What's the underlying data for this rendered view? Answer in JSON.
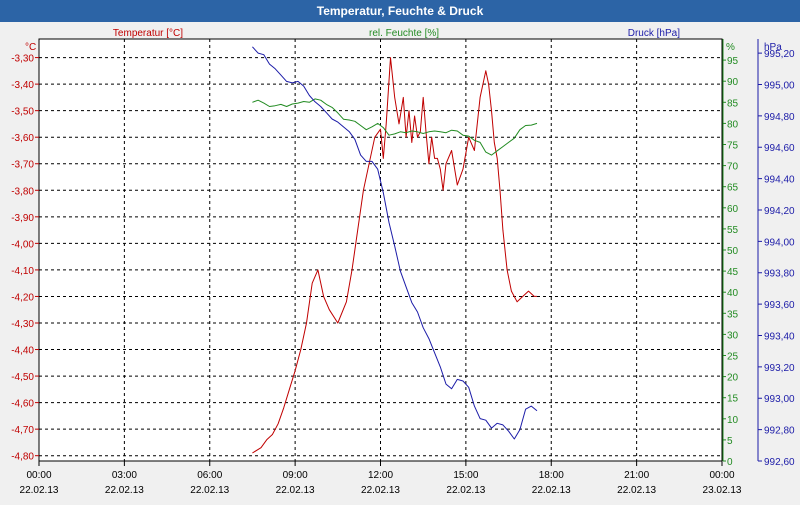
{
  "window": {
    "title": "Temperatur, Feuchte & Druck"
  },
  "colors": {
    "temperature": "#c00000",
    "humidity": "#228b22",
    "pressure": "#1c1ca8",
    "grid": "#000000",
    "text": "#000000"
  },
  "chart_data": {
    "type": "line",
    "title": "Temperatur, Feuchte & Druck",
    "x": {
      "ticks": [
        {
          "time": "00:00",
          "date": "22.02.13",
          "h": 0
        },
        {
          "time": "03:00",
          "date": "22.02.13",
          "h": 3
        },
        {
          "time": "06:00",
          "date": "22.02.13",
          "h": 6
        },
        {
          "time": "09:00",
          "date": "22.02.13",
          "h": 9
        },
        {
          "time": "12:00",
          "date": "22.02.13",
          "h": 12
        },
        {
          "time": "15:00",
          "date": "22.02.13",
          "h": 15
        },
        {
          "time": "18:00",
          "date": "22.02.13",
          "h": 18
        },
        {
          "time": "21:00",
          "date": "22.02.13",
          "h": 21
        },
        {
          "time": "00:00",
          "date": "23.02.13",
          "h": 24
        }
      ],
      "range": [
        0,
        24
      ]
    },
    "axes": {
      "temperature": {
        "title": "Temperatur [°C]",
        "unit": "°C",
        "range": [
          -4.82,
          -3.23
        ],
        "ticks": [
          "-3,30",
          "-3,40",
          "-3,50",
          "-3,60",
          "-3,70",
          "-3,80",
          "-3,90",
          "-4,00",
          "-4,10",
          "-4,20",
          "-4,30",
          "-4,40",
          "-4,50",
          "-4,60",
          "-4,70",
          "-4,80"
        ],
        "tick_values": [
          -3.3,
          -3.4,
          -3.5,
          -3.6,
          -3.7,
          -3.8,
          -3.9,
          -4.0,
          -4.1,
          -4.2,
          -4.3,
          -4.4,
          -4.5,
          -4.6,
          -4.7,
          -4.8
        ]
      },
      "humidity": {
        "title": "rel. Feuchte [%]",
        "unit": "%",
        "range": [
          0,
          100
        ],
        "ticks": [
          "95",
          "90",
          "85",
          "80",
          "75",
          "70",
          "65",
          "60",
          "55",
          "50",
          "45",
          "40",
          "35",
          "30",
          "25",
          "20",
          "15",
          "10",
          "5",
          "0"
        ],
        "tick_values": [
          95,
          90,
          85,
          80,
          75,
          70,
          65,
          60,
          55,
          50,
          45,
          40,
          35,
          30,
          25,
          20,
          15,
          10,
          5,
          0
        ]
      },
      "pressure": {
        "title": "Druck [hPa]",
        "unit": "hPa",
        "range": [
          992.6,
          995.29
        ],
        "ticks": [
          "995,20",
          "995,00",
          "994,80",
          "994,60",
          "994,40",
          "994,20",
          "994,00",
          "993,80",
          "993,60",
          "993,40",
          "993,20",
          "993,00",
          "992,80",
          "992,60"
        ],
        "tick_values": [
          995.2,
          995.0,
          994.8,
          994.6,
          994.4,
          994.2,
          994.0,
          993.8,
          993.6,
          993.4,
          993.2,
          993.0,
          992.8,
          992.6
        ]
      }
    },
    "grid": true,
    "series": [
      {
        "name": "Temperatur",
        "axis": "temperature",
        "x": [
          7.5,
          7.8,
          8.0,
          8.2,
          8.4,
          8.6,
          8.8,
          9.0,
          9.2,
          9.4,
          9.6,
          9.8,
          10.0,
          10.2,
          10.5,
          10.8,
          11.0,
          11.2,
          11.4,
          11.6,
          11.8,
          12.0,
          12.1,
          12.2,
          12.35,
          12.5,
          12.65,
          12.8,
          12.9,
          13.0,
          13.1,
          13.2,
          13.3,
          13.4,
          13.5,
          13.6,
          13.7,
          13.8,
          13.9,
          14.0,
          14.1,
          14.2,
          14.3,
          14.5,
          14.7,
          14.9,
          15.1,
          15.3,
          15.5,
          15.7,
          15.8,
          15.9,
          16.0,
          16.1,
          16.2,
          16.3,
          16.45,
          16.6,
          16.8,
          17.0,
          17.2,
          17.4,
          17.5
        ],
        "values": [
          -4.79,
          -4.77,
          -4.74,
          -4.72,
          -4.68,
          -4.62,
          -4.55,
          -4.48,
          -4.4,
          -4.3,
          -4.15,
          -4.1,
          -4.2,
          -4.25,
          -4.3,
          -4.22,
          -4.1,
          -3.95,
          -3.8,
          -3.7,
          -3.6,
          -3.57,
          -3.68,
          -3.55,
          -3.3,
          -3.45,
          -3.55,
          -3.45,
          -3.6,
          -3.5,
          -3.62,
          -3.52,
          -3.6,
          -3.58,
          -3.45,
          -3.58,
          -3.7,
          -3.6,
          -3.68,
          -3.68,
          -3.72,
          -3.8,
          -3.7,
          -3.65,
          -3.78,
          -3.72,
          -3.6,
          -3.65,
          -3.45,
          -3.35,
          -3.4,
          -3.5,
          -3.62,
          -3.68,
          -3.8,
          -3.95,
          -4.1,
          -4.18,
          -4.22,
          -4.2,
          -4.18,
          -4.2,
          -4.2
        ]
      },
      {
        "name": "rel. Feuchte",
        "axis": "humidity",
        "x": [
          7.5,
          7.7,
          7.9,
          8.1,
          8.3,
          8.5,
          8.7,
          8.9,
          9.1,
          9.3,
          9.5,
          9.7,
          9.9,
          10.1,
          10.3,
          10.5,
          10.7,
          10.9,
          11.1,
          11.3,
          11.5,
          11.7,
          11.9,
          12.1,
          12.3,
          12.5,
          12.7,
          12.9,
          13.1,
          13.3,
          13.5,
          13.7,
          13.9,
          14.1,
          14.3,
          14.5,
          14.7,
          14.9,
          15.1,
          15.3,
          15.5,
          15.7,
          15.9,
          16.1,
          16.3,
          16.5,
          16.7,
          16.9,
          17.1,
          17.3,
          17.5
        ],
        "values": [
          85.0,
          85.5,
          84.8,
          84.0,
          84.2,
          84.5,
          84.0,
          84.6,
          84.8,
          85.2,
          85.0,
          85.8,
          85.5,
          84.5,
          83.8,
          82.5,
          81.0,
          80.8,
          80.5,
          79.5,
          78.5,
          79.2,
          80.0,
          79.0,
          77.2,
          77.5,
          78.0,
          77.8,
          78.2,
          78.0,
          77.6,
          78.0,
          78.2,
          78.0,
          77.8,
          78.4,
          78.2,
          77.2,
          77.0,
          76.0,
          75.5,
          73.2,
          72.5,
          73.5,
          74.5,
          75.5,
          76.5,
          78.5,
          79.5,
          79.6,
          80.0
        ]
      },
      {
        "name": "Druck",
        "axis": "pressure",
        "x": [
          7.5,
          7.7,
          7.9,
          8.1,
          8.3,
          8.5,
          8.7,
          8.9,
          9.1,
          9.3,
          9.5,
          9.7,
          9.9,
          10.1,
          10.3,
          10.5,
          10.7,
          10.9,
          11.1,
          11.3,
          11.5,
          11.7,
          11.9,
          12.1,
          12.3,
          12.5,
          12.7,
          12.9,
          13.1,
          13.3,
          13.5,
          13.7,
          13.9,
          14.1,
          14.3,
          14.5,
          14.7,
          14.9,
          15.1,
          15.3,
          15.5,
          15.7,
          15.9,
          16.1,
          16.3,
          16.5,
          16.7,
          16.9,
          17.1,
          17.3,
          17.5
        ],
        "values": [
          995.24,
          995.2,
          995.19,
          995.13,
          995.1,
          995.06,
          995.02,
          995.01,
          995.02,
          994.99,
          994.93,
          994.89,
          994.86,
          994.82,
          994.78,
          994.76,
          994.73,
          994.7,
          994.65,
          994.55,
          994.51,
          994.51,
          994.46,
          994.31,
          994.12,
          993.97,
          993.81,
          993.71,
          993.61,
          993.55,
          993.45,
          993.38,
          993.29,
          993.2,
          993.09,
          993.06,
          993.12,
          993.11,
          993.07,
          992.95,
          992.87,
          992.86,
          992.81,
          992.84,
          992.83,
          992.79,
          992.74,
          992.8,
          992.93,
          992.95,
          992.92
        ]
      }
    ]
  }
}
